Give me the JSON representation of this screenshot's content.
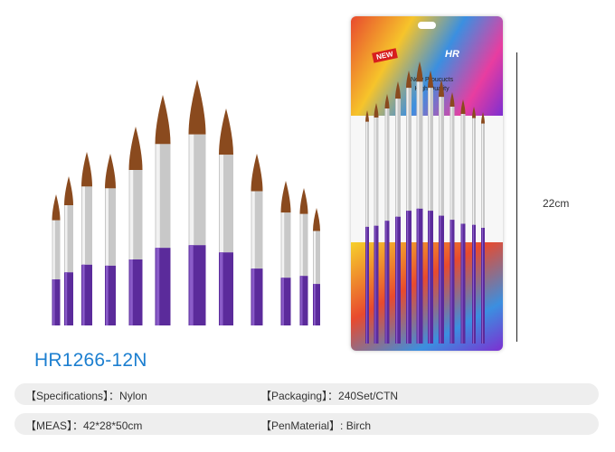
{
  "card": {
    "badge": "NEW",
    "brand": "HR",
    "tagline_line1": "New Proucucts",
    "tagline_line2": "High Quality"
  },
  "dimension": {
    "height_label": "22cm"
  },
  "model": "HR1266-12N",
  "specs": {
    "specifications": "【Specifications】：Nylon",
    "packaging": "【Packaging】：240Set/CTN",
    "meas": "【MEAS】：42*28*50cm",
    "pen_material": "【PenMaterial】: Birch"
  },
  "colors": {
    "model_text": "#1c7fd0",
    "handle_purple": "#5b2b9b",
    "bristle_brown": "#8a4a1e",
    "ferrule_silver": "#c8c8c8",
    "spec_bar": "#eeeeee"
  }
}
